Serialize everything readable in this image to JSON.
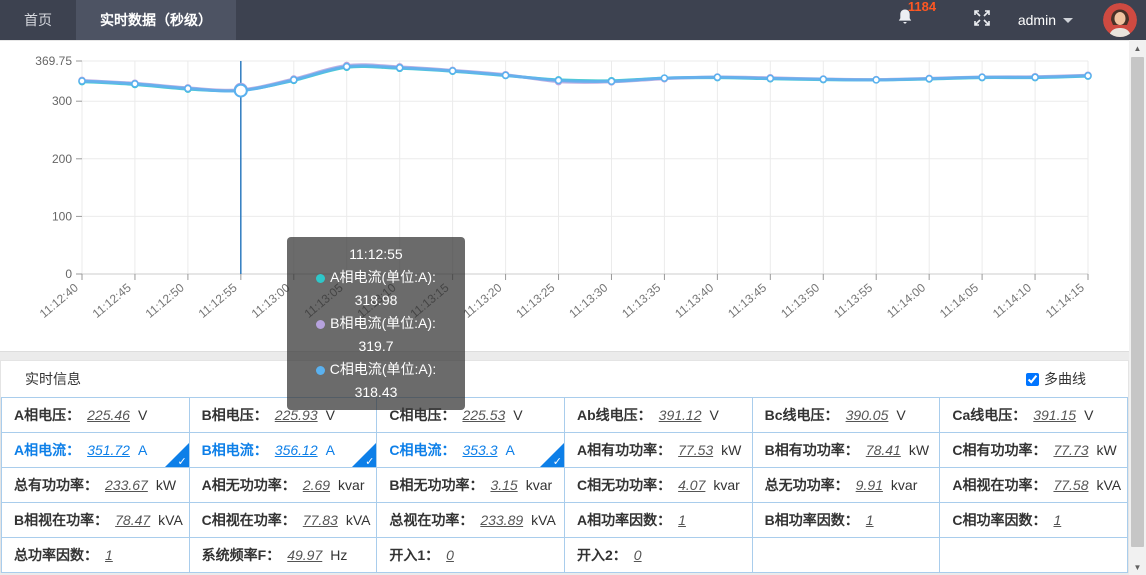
{
  "navbar": {
    "tabs": [
      {
        "label": "首页"
      },
      {
        "label": "实时数据（秒级）"
      }
    ],
    "notification_count": "1184",
    "username": "admin"
  },
  "chart_data": {
    "type": "line",
    "x": [
      "11:12:40",
      "11:12:45",
      "11:12:50",
      "11:12:55",
      "11:13:00",
      "11:13:05",
      "11:13:10",
      "11:13:15",
      "11:13:20",
      "11:13:25",
      "11:13:30",
      "11:13:35",
      "11:13:40",
      "11:13:45",
      "11:13:50",
      "11:13:55",
      "11:14:00",
      "11:14:05",
      "11:14:10",
      "11:14:15"
    ],
    "series": [
      {
        "name": "A相电流(单位:A)",
        "color": "#2ec7c9",
        "values": [
          334,
          329,
          321,
          318.98,
          336,
          359,
          357,
          352,
          344.5,
          337,
          335.5,
          340,
          341,
          339,
          337.5,
          337,
          338.5,
          341,
          341,
          343.5
        ]
      },
      {
        "name": "B相电流(单位:A)",
        "color": "#b6a2de",
        "values": [
          336,
          331,
          323,
          319.7,
          338.5,
          362,
          359.5,
          353.5,
          346,
          334,
          333.5,
          339,
          342,
          340.5,
          338.5,
          337.5,
          339.5,
          342,
          342.5,
          345
        ]
      },
      {
        "name": "C相电流(单位:A)",
        "color": "#5ab1ef",
        "values": [
          335,
          330,
          322,
          318.43,
          337,
          360,
          358,
          352.5,
          345,
          336,
          334.5,
          340,
          341.5,
          339.5,
          338,
          337,
          339,
          341.5,
          341.5,
          344
        ]
      }
    ],
    "ylim": [
      0,
      369.75
    ],
    "yticks": [
      0,
      100,
      200,
      300,
      369.75
    ],
    "grid": true,
    "legend": "none",
    "hover": {
      "index": 3,
      "title": "11:12:55",
      "items": [
        {
          "name": "A相电流(单位:A)",
          "value": "318.98",
          "color": "#2ec7c9"
        },
        {
          "name": "B相电流(单位:A)",
          "value": "319.7",
          "color": "#b6a2de"
        },
        {
          "name": "C相电流(单位:A)",
          "value": "318.43",
          "color": "#5ab1ef"
        }
      ]
    }
  },
  "info_panel": {
    "title": "实时信息",
    "multi_curve_label": "多曲线",
    "multi_curve_checked": true,
    "rows": [
      [
        {
          "label": "A相电压：",
          "value": "225.46",
          "unit": "V"
        },
        {
          "label": "B相电压：",
          "value": "225.93",
          "unit": "V"
        },
        {
          "label": "C相电压：",
          "value": "225.53",
          "unit": "V"
        },
        {
          "label": "Ab线电压：",
          "value": "391.12",
          "unit": "V"
        },
        {
          "label": "Bc线电压：",
          "value": "390.05",
          "unit": "V"
        },
        {
          "label": "Ca线电压：",
          "value": "391.15",
          "unit": "V"
        }
      ],
      [
        {
          "label": "A相电流：",
          "value": "351.72",
          "unit": "A",
          "selected": true
        },
        {
          "label": "B相电流：",
          "value": "356.12",
          "unit": "A",
          "selected": true
        },
        {
          "label": "C相电流：",
          "value": "353.3",
          "unit": "A",
          "selected": true
        },
        {
          "label": "A相有功功率：",
          "value": "77.53",
          "unit": "kW"
        },
        {
          "label": "B相有功功率：",
          "value": "78.41",
          "unit": "kW"
        },
        {
          "label": "C相有功功率：",
          "value": "77.73",
          "unit": "kW"
        }
      ],
      [
        {
          "label": "总有功功率：",
          "value": "233.67",
          "unit": "kW"
        },
        {
          "label": "A相无功功率：",
          "value": "2.69",
          "unit": "kvar"
        },
        {
          "label": "B相无功功率：",
          "value": "3.15",
          "unit": "kvar"
        },
        {
          "label": "C相无功功率：",
          "value": "4.07",
          "unit": "kvar"
        },
        {
          "label": "总无功功率：",
          "value": "9.91",
          "unit": "kvar"
        },
        {
          "label": "A相视在功率：",
          "value": "77.58",
          "unit": "kVA"
        }
      ],
      [
        {
          "label": "B相视在功率：",
          "value": "78.47",
          "unit": "kVA"
        },
        {
          "label": "C相视在功率：",
          "value": "77.83",
          "unit": "kVA"
        },
        {
          "label": "总视在功率：",
          "value": "233.89",
          "unit": "kVA"
        },
        {
          "label": "A相功率因数：",
          "value": "1",
          "unit": ""
        },
        {
          "label": "B相功率因数：",
          "value": "1",
          "unit": ""
        },
        {
          "label": "C相功率因数：",
          "value": "1",
          "unit": ""
        }
      ],
      [
        {
          "label": "总功率因数：",
          "value": "1",
          "unit": ""
        },
        {
          "label": "系统频率F：",
          "value": "49.97",
          "unit": "Hz"
        },
        {
          "label": "开入1：",
          "value": "0",
          "unit": ""
        },
        {
          "label": "开入2：",
          "value": "0",
          "unit": ""
        },
        null,
        null
      ]
    ]
  },
  "colors": {
    "accent-blue": "#0d7fe8",
    "table-border": "#a9cdec",
    "badge-orange": "#ff5722",
    "navbar-bg": "#3d4250",
    "navbar-active-bg": "#4d5363",
    "axis-pointer": "#2f7cc0",
    "tooltip-bg": "rgba(50,50,50,0.72)"
  }
}
